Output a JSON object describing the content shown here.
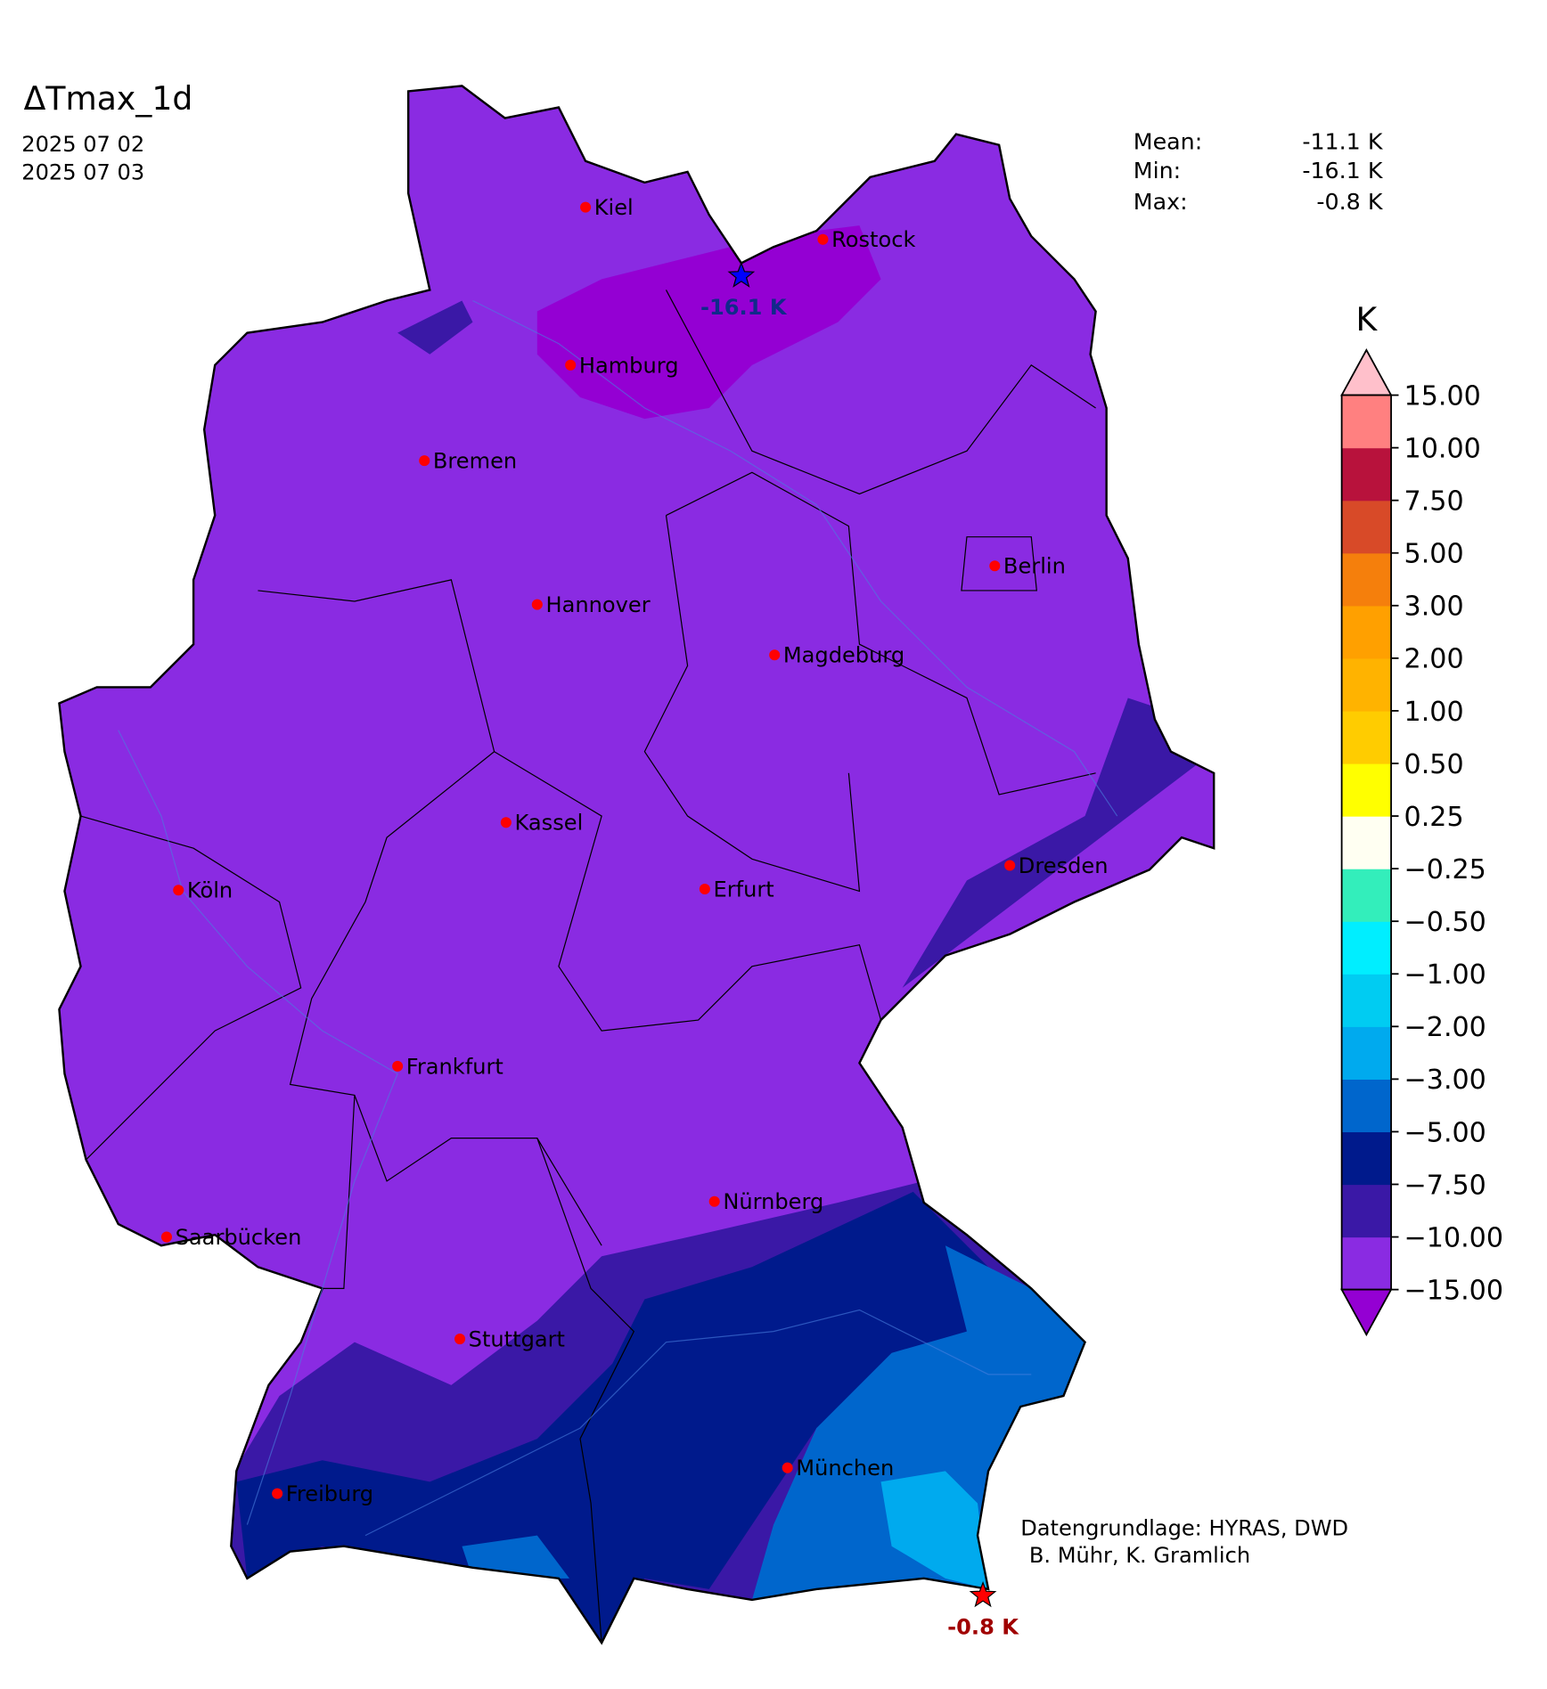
{
  "title": "ΔTmax_1d",
  "dates": [
    "2025 07 02",
    "2025 07 03"
  ],
  "stats": [
    {
      "label": "Mean:",
      "value": "-11.1 K"
    },
    {
      "label": "Min:",
      "value": "-16.1 K"
    },
    {
      "label": "Max:",
      "value": "-0.8 K"
    }
  ],
  "colorbar": {
    "unit": "K",
    "ticks": [
      "−15.00",
      "−10.00",
      "−7.50",
      "−5.00",
      "−3.00",
      "−2.00",
      "−1.00",
      "−0.50",
      "−0.25",
      "0.25",
      "0.50",
      "1.00",
      "2.00",
      "3.00",
      "5.00",
      "7.50",
      "10.00",
      "15.00"
    ],
    "colors": [
      "#8a2be2",
      "#3a18a6",
      "#001a8c",
      "#0066cc",
      "#00aaee",
      "#00ccf2",
      "#00eeff",
      "#33eebb",
      "#fffff2",
      "#ffff00",
      "#ffcc00",
      "#ffb300",
      "#ffa000",
      "#f57f0c",
      "#d84a28",
      "#b8123c",
      "#ff8080"
    ],
    "under_color": "#9400d3",
    "over_color": "#ffc0cb"
  },
  "cities": [
    "Kiel",
    "Rostock",
    "Hamburg",
    "Bremen",
    "Berlin",
    "Hannover",
    "Magdeburg",
    "Kassel",
    "Dresden",
    "Köln",
    "Erfurt",
    "Frankfurt",
    "Nürnberg",
    "Saarbücken",
    "Stuttgart",
    "München",
    "Freiburg"
  ],
  "extremes": [
    {
      "label": "-16.1 K",
      "color": "#0000ff",
      "text_color": "#102a8a"
    },
    {
      "label": "-0.8 K",
      "color": "#ff0000",
      "text_color": "#a00000"
    }
  ],
  "credits": [
    "Datengrundlage: HYRAS, DWD",
    "B. Mühr, K. Gramlich"
  ]
}
